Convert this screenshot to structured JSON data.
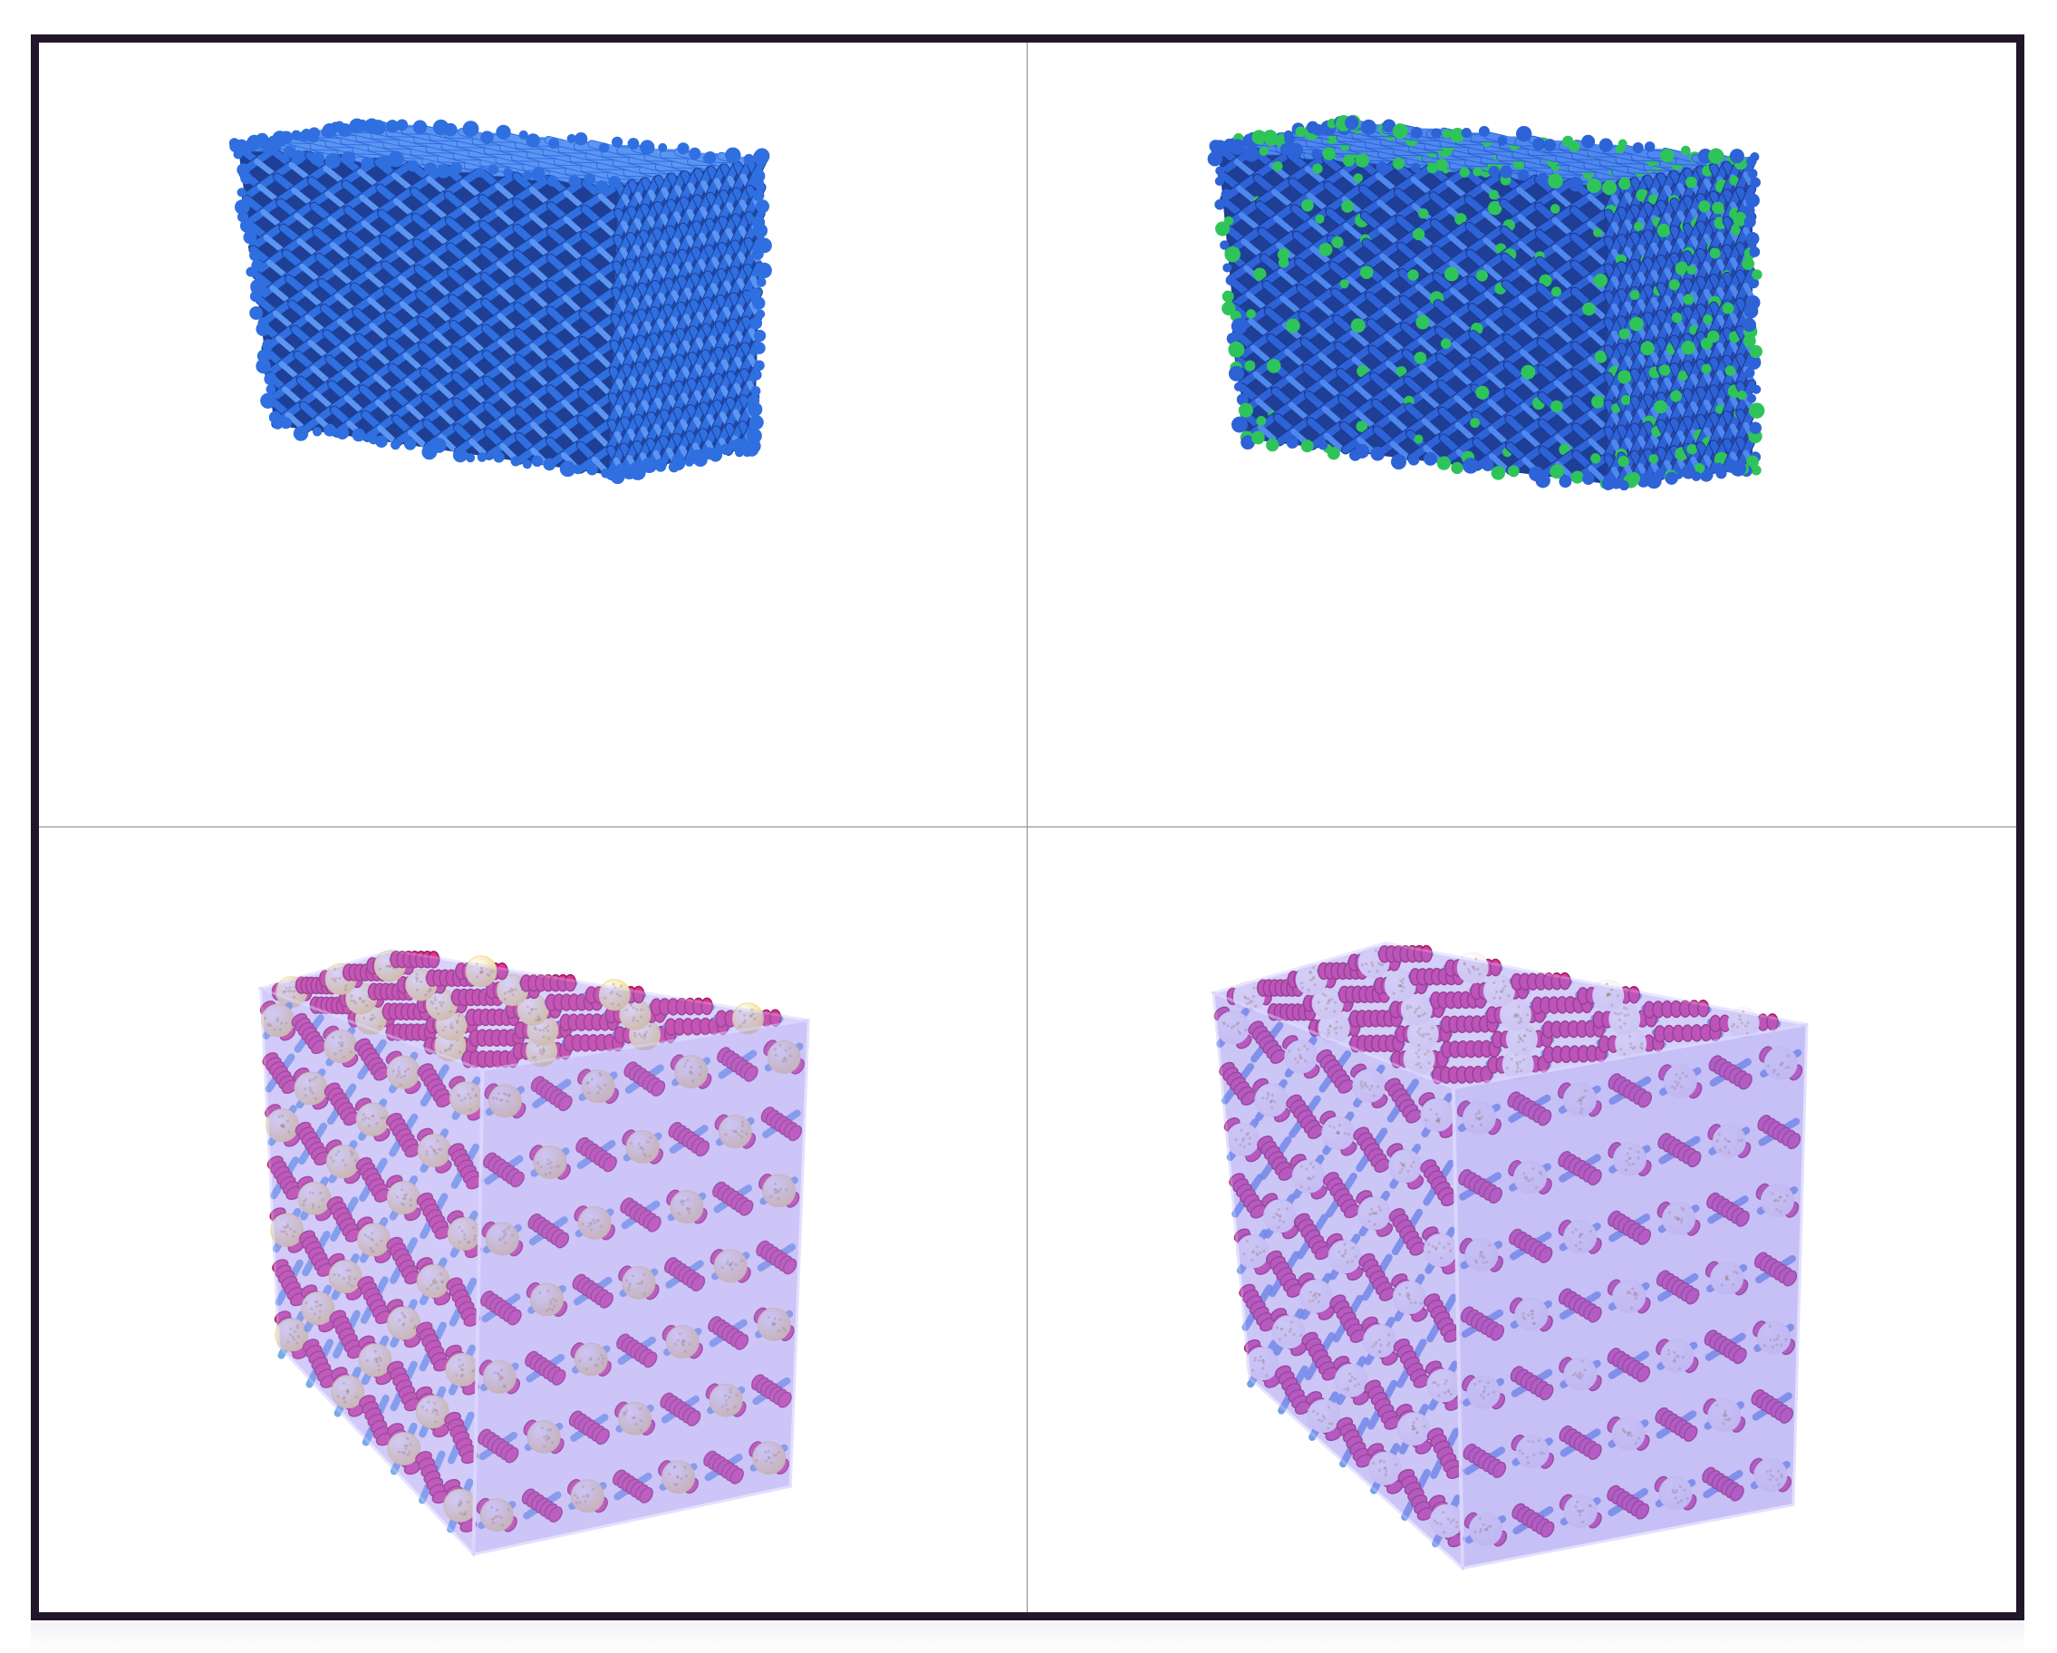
{
  "figure": {
    "panels": [
      {
        "id": "top-left",
        "subject": "blue-lattice-cube",
        "colors": {
          "strut": "#2f6fe0",
          "strut_dark": "#1d3f9a",
          "strut_light": "#5c96f2"
        }
      },
      {
        "id": "top-right",
        "subject": "blue-green-lattice-cube",
        "colors": {
          "strut": "#2d63d6",
          "node": "#2fc45a",
          "strut_dark": "#1c3890"
        }
      },
      {
        "id": "bottom-left",
        "subject": "translucent-cube-with-pink-helices-and-yellow-spheres",
        "colors": {
          "shell": "#9c8cf2",
          "helix": "#e0338f",
          "sphere": "#f1dc8a",
          "strut": "#5aa0e6"
        }
      },
      {
        "id": "bottom-right",
        "subject": "translucent-cube-with-pink-helices-and-white-spheres",
        "colors": {
          "shell": "#8f82ee",
          "helix": "#d9399a",
          "sphere": "#f4eff6",
          "strut": "#5b8fe3"
        }
      }
    ],
    "frame_color": "#22172a",
    "divider_color": "#8a8a8a"
  }
}
